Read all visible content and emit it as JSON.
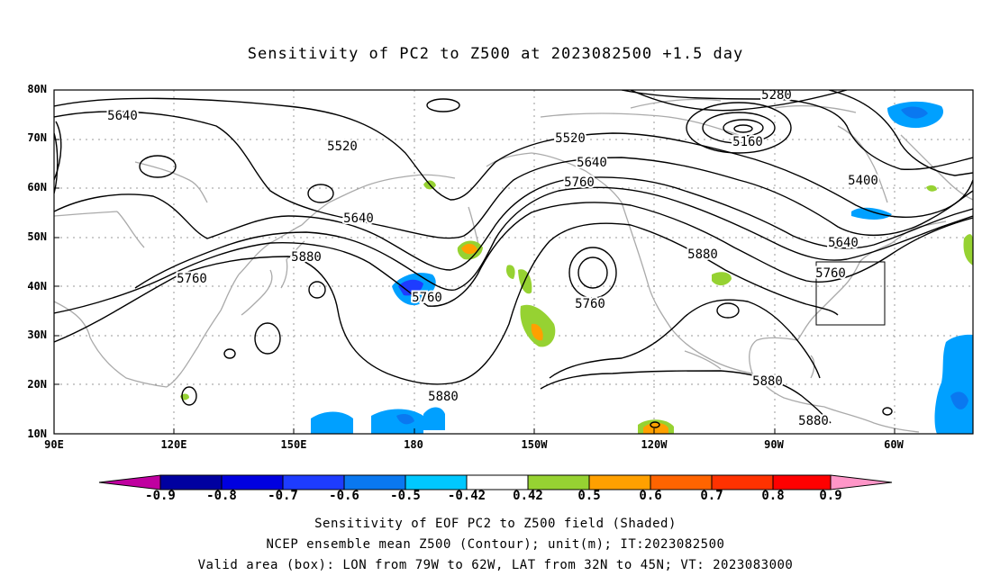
{
  "title": "Sensitivity of PC2 to Z500 at 2023082500 +1.5 day",
  "lat_labels": [
    "80N",
    "70N",
    "60N",
    "50N",
    "40N",
    "30N",
    "20N",
    "10N"
  ],
  "lon_labels": [
    "90E",
    "120E",
    "150E",
    "180",
    "150W",
    "120W",
    "90W",
    "60W"
  ],
  "contour_labels": [
    "5640",
    "5520",
    "5520",
    "5640",
    "5760",
    "5880",
    "5280",
    "5160",
    "5400",
    "5640",
    "5640",
    "5760",
    "5760",
    "5880",
    "5760",
    "5760",
    "5880",
    "5880",
    "5880",
    "5880"
  ],
  "colorbar": {
    "labels": [
      "-0.9",
      "-0.8",
      "-0.7",
      "-0.6",
      "-0.5",
      "-0.42",
      "0.42",
      "0.5",
      "0.6",
      "0.7",
      "0.8",
      "0.9"
    ],
    "colors": [
      "#c000a0",
      "#0000a0",
      "#0000e0",
      "#1e3cff",
      "#0a78f0",
      "#00a0ff",
      "#00c8ff",
      "#ffffff",
      "#96d232",
      "#ffa000",
      "#ff6400",
      "#ff3200",
      "#ff0000",
      "#ff96c8"
    ]
  },
  "footer": {
    "line1": "Sensitivity of EOF PC2 to Z500 field (Shaded)",
    "line2": "NCEP ensemble mean Z500 (Contour); unit(m); IT:2023082500",
    "line3": "Valid area (box): LON from 79W to 62W, LAT from 32N to 45N; VT: 2023083000"
  }
}
